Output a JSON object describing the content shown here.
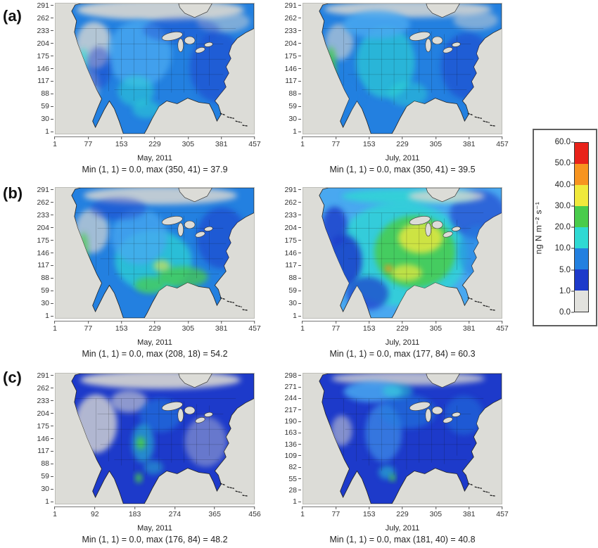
{
  "figure": {
    "row_labels": [
      "(a)",
      "(b)",
      "(c)"
    ],
    "ocean": "#dcdcd7",
    "palette": {
      "gray": "#d8d7d2",
      "dkblue": "#1d3aca",
      "blue": "#2380e0",
      "ltblue": "#49a8f0",
      "cyan": "#2fd9d3",
      "green": "#49cc4c",
      "yellow": "#f0e93c",
      "orange": "#f79420",
      "red": "#e8221a"
    },
    "maps": [
      {
        "base": "blue",
        "blobs": [
          [
            150,
            9,
            120,
            15,
            "gray",
            0.9
          ],
          [
            55,
            60,
            26,
            34,
            "gray",
            0.8
          ],
          [
            48,
            118,
            15,
            24,
            "gray",
            0.5
          ],
          [
            240,
            26,
            38,
            16,
            "gray",
            0.5
          ],
          [
            120,
            72,
            46,
            48,
            "ltblue",
            0.8
          ],
          [
            115,
            126,
            26,
            22,
            "cyan",
            0.5
          ],
          [
            130,
            152,
            20,
            13,
            "cyan",
            0.5
          ],
          [
            40,
            88,
            7,
            24,
            "cyan",
            0.7
          ],
          [
            232,
            92,
            40,
            50,
            "dkblue",
            0.5
          ],
          [
            180,
            38,
            55,
            18,
            "dkblue",
            0.35
          ],
          [
            62,
            92,
            18,
            30,
            "dkblue",
            0.45
          ]
        ]
      },
      {
        "base": "blue",
        "blobs": [
          [
            150,
            8,
            120,
            12,
            "gray",
            0.85
          ],
          [
            52,
            55,
            20,
            26,
            "gray",
            0.6
          ],
          [
            118,
            84,
            42,
            52,
            "cyan",
            0.6
          ],
          [
            105,
            30,
            48,
            20,
            "ltblue",
            0.85
          ],
          [
            40,
            88,
            7,
            26,
            "green",
            0.8
          ],
          [
            235,
            90,
            38,
            48,
            "dkblue",
            0.5
          ],
          [
            62,
            132,
            24,
            28,
            "blue",
            0.6
          ],
          [
            247,
            24,
            32,
            14,
            "gray",
            0.5
          ],
          [
            150,
            130,
            28,
            18,
            "cyan",
            0.45
          ]
        ]
      },
      {
        "base": "blue",
        "blobs": [
          [
            150,
            11,
            110,
            13,
            "gray",
            0.85
          ],
          [
            52,
            62,
            24,
            32,
            "gray",
            0.7
          ],
          [
            140,
            105,
            55,
            44,
            "cyan",
            0.7
          ],
          [
            120,
            70,
            40,
            40,
            "ltblue",
            0.75
          ],
          [
            182,
            128,
            36,
            15,
            "green",
            0.75
          ],
          [
            135,
            140,
            22,
            12,
            "green",
            0.7
          ],
          [
            152,
            112,
            12,
            8,
            "yellow",
            0.6
          ],
          [
            238,
            72,
            36,
            44,
            "dkblue",
            0.55
          ],
          [
            90,
            30,
            40,
            16,
            "dkblue",
            0.45
          ],
          [
            40,
            88,
            7,
            24,
            "green",
            0.7
          ]
        ]
      },
      {
        "base": "ltblue",
        "blobs": [
          [
            140,
            95,
            95,
            75,
            "cyan",
            0.75
          ],
          [
            160,
            92,
            58,
            52,
            "green",
            0.85
          ],
          [
            168,
            72,
            32,
            22,
            "yellow",
            0.8
          ],
          [
            148,
            122,
            22,
            12,
            "yellow",
            0.7
          ],
          [
            122,
            116,
            5,
            5,
            "orange",
            0.95
          ],
          [
            58,
            105,
            26,
            38,
            "dkblue",
            0.85
          ],
          [
            45,
            55,
            18,
            28,
            "dkblue",
            0.8
          ],
          [
            250,
            38,
            40,
            35,
            "dkblue",
            0.6
          ],
          [
            92,
            152,
            30,
            24,
            "dkblue",
            0.7
          ],
          [
            150,
            12,
            95,
            11,
            "cyan",
            0.8
          ],
          [
            250,
            92,
            28,
            38,
            "blue",
            0.55
          ],
          [
            205,
            12,
            55,
            9,
            "gray",
            0.8
          ]
        ]
      },
      {
        "base": "dkblue",
        "blobs": [
          [
            150,
            9,
            115,
            13,
            "gray",
            0.9
          ],
          [
            58,
            72,
            30,
            42,
            "gray",
            0.8
          ],
          [
            105,
            40,
            26,
            16,
            "gray",
            0.6
          ],
          [
            215,
            98,
            30,
            36,
            "gray",
            0.4
          ],
          [
            150,
            60,
            30,
            24,
            "blue",
            0.55
          ],
          [
            125,
            100,
            16,
            28,
            "cyan",
            0.5
          ],
          [
            122,
            100,
            6,
            9,
            "green",
            0.95
          ],
          [
            119,
            150,
            5,
            7,
            "green",
            0.9
          ],
          [
            140,
            135,
            14,
            10,
            "cyan",
            0.4
          ]
        ]
      },
      {
        "base": "dkblue",
        "blobs": [
          [
            150,
            7,
            110,
            10,
            "gray",
            0.8
          ],
          [
            100,
            26,
            42,
            15,
            "ltblue",
            0.85
          ],
          [
            115,
            85,
            26,
            42,
            "ltblue",
            0.55
          ],
          [
            150,
            55,
            40,
            24,
            "blue",
            0.55
          ],
          [
            55,
            82,
            15,
            22,
            "gray",
            0.55
          ],
          [
            120,
            142,
            12,
            10,
            "cyan",
            0.5
          ],
          [
            128,
            150,
            4,
            5,
            "green",
            0.95
          ],
          [
            230,
            60,
            28,
            28,
            "blue",
            0.45
          ],
          [
            135,
            25,
            22,
            10,
            "cyan",
            0.5
          ]
        ]
      }
    ]
  },
  "chart_data": {
    "type": "heatmap",
    "figure_kind": "map-grid",
    "region": "North America",
    "colorbar": {
      "unit": "ng N m⁻² s⁻¹",
      "levels": [
        0.0,
        1.0,
        5.0,
        10.0,
        20.0,
        30.0,
        40.0,
        50.0,
        60.0
      ],
      "tick_labels_top_to_bottom": [
        "60.0",
        "50.0",
        "40.0",
        "30.0",
        "20.0",
        "10.0",
        "5.0",
        "1.0",
        "0.0"
      ],
      "colors_bottom_to_top": [
        "#e2e2de",
        "#1d3aca",
        "#2380e0",
        "#2fd9d3",
        "#49cc4c",
        "#f0e93c",
        "#f79420",
        "#e8221a"
      ]
    },
    "panels": [
      {
        "id": "a-left",
        "row": "(a)",
        "title": "May, 2011",
        "annotation": "Min (1, 1) = 0.0, max (350, 41) = 37.9",
        "min_cell": [
          1,
          1
        ],
        "min_value": 0.0,
        "max_cell": [
          350,
          41
        ],
        "max_value": 37.9,
        "x_ticks": [
          1,
          77,
          153,
          229,
          305,
          381,
          457
        ],
        "y_ticks": [
          291,
          262,
          233,
          204,
          175,
          146,
          117,
          88,
          59,
          30,
          1
        ]
      },
      {
        "id": "a-right",
        "row": "(a)",
        "title": "July, 2011",
        "annotation": "Min (1, 1) = 0.0, max (350, 41) = 39.5",
        "min_cell": [
          1,
          1
        ],
        "min_value": 0.0,
        "max_cell": [
          350,
          41
        ],
        "max_value": 39.5,
        "x_ticks": [
          1,
          77,
          153,
          229,
          305,
          381,
          457
        ],
        "y_ticks": [
          291,
          262,
          233,
          204,
          175,
          146,
          117,
          88,
          59,
          30,
          1
        ]
      },
      {
        "id": "b-left",
        "row": "(b)",
        "title": "May, 2011",
        "annotation": "Min (1, 1) = 0.0, max (208, 18) = 54.2",
        "min_cell": [
          1,
          1
        ],
        "min_value": 0.0,
        "max_cell": [
          208,
          18
        ],
        "max_value": 54.2,
        "x_ticks": [
          1,
          77,
          153,
          229,
          305,
          381,
          457
        ],
        "y_ticks": [
          291,
          262,
          233,
          204,
          175,
          146,
          117,
          88,
          59,
          30,
          1
        ]
      },
      {
        "id": "b-right",
        "row": "(b)",
        "title": "July, 2011",
        "annotation": "Min (1, 1) = 0.0, max (177, 84) = 60.3",
        "min_cell": [
          1,
          1
        ],
        "min_value": 0.0,
        "max_cell": [
          177,
          84
        ],
        "max_value": 60.3,
        "x_ticks": [
          1,
          77,
          153,
          229,
          305,
          381,
          457
        ],
        "y_ticks": [
          291,
          262,
          233,
          204,
          175,
          146,
          117,
          88,
          59,
          30,
          1
        ]
      },
      {
        "id": "c-left",
        "row": "(c)",
        "title": "May, 2011",
        "annotation": "Min (1, 1) = 0.0, max (176, 84) = 48.2",
        "min_cell": [
          1,
          1
        ],
        "min_value": 0.0,
        "max_cell": [
          176,
          84
        ],
        "max_value": 48.2,
        "x_ticks": [
          1,
          92,
          183,
          274,
          365,
          456
        ],
        "y_ticks": [
          291,
          262,
          233,
          204,
          175,
          146,
          117,
          88,
          59,
          30,
          1
        ]
      },
      {
        "id": "c-right",
        "row": "(c)",
        "title": "July, 2011",
        "annotation": "Min (1, 1) = 0.0, max (181, 40) = 40.8",
        "min_cell": [
          1,
          1
        ],
        "min_value": 0.0,
        "max_cell": [
          181,
          40
        ],
        "max_value": 40.8,
        "x_ticks": [
          1,
          77,
          153,
          229,
          305,
          381,
          457
        ],
        "y_ticks": [
          298,
          271,
          244,
          217,
          190,
          163,
          136,
          109,
          82,
          55,
          28,
          1
        ]
      }
    ]
  }
}
